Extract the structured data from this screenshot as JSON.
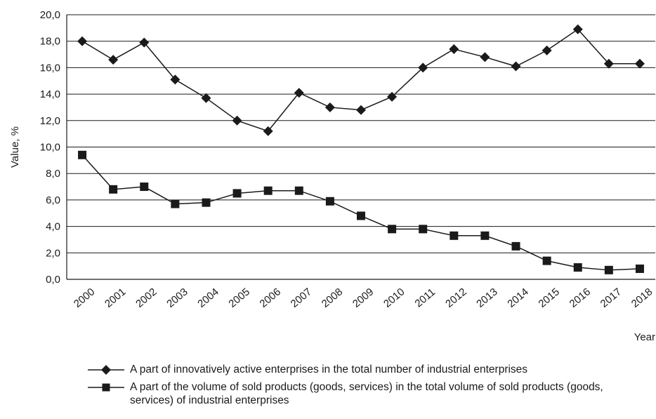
{
  "chart_data": {
    "type": "line",
    "title": "",
    "xlabel": "Year",
    "ylabel": "Value, %",
    "ylim": [
      0,
      20
    ],
    "yticks": [
      "0,0",
      "2,0",
      "4,0",
      "6,0",
      "8,0",
      "10,0",
      "12,0",
      "14,0",
      "16,0",
      "18,0",
      "20,0"
    ],
    "grid": "horizontal",
    "legend_position": "bottom",
    "categories": [
      "2000",
      "2001",
      "2002",
      "2003",
      "2004",
      "2005",
      "2006",
      "2007",
      "2008",
      "2009",
      "2010",
      "2011",
      "2012",
      "2013",
      "2014",
      "2015",
      "2016",
      "2017",
      "2018"
    ],
    "series": [
      {
        "name": "A part of innovatively active enterprises in the total number of industrial enterprises",
        "marker": "diamond",
        "color": "#1a1a1a",
        "values": [
          18.0,
          16.6,
          17.9,
          15.1,
          13.7,
          12.0,
          11.2,
          14.1,
          13.0,
          12.8,
          13.8,
          16.0,
          17.4,
          16.8,
          16.1,
          17.3,
          18.9,
          16.3,
          16.3
        ]
      },
      {
        "name": "A part of the volume of sold products (goods, services) in the total volume of sold products (goods, services) of industrial enterprises",
        "marker": "square",
        "color": "#1a1a1a",
        "values": [
          9.4,
          6.8,
          7.0,
          5.7,
          5.8,
          6.5,
          6.7,
          6.7,
          5.9,
          4.8,
          3.8,
          3.8,
          3.3,
          3.3,
          2.5,
          1.4,
          0.9,
          0.7,
          0.8
        ]
      }
    ]
  }
}
